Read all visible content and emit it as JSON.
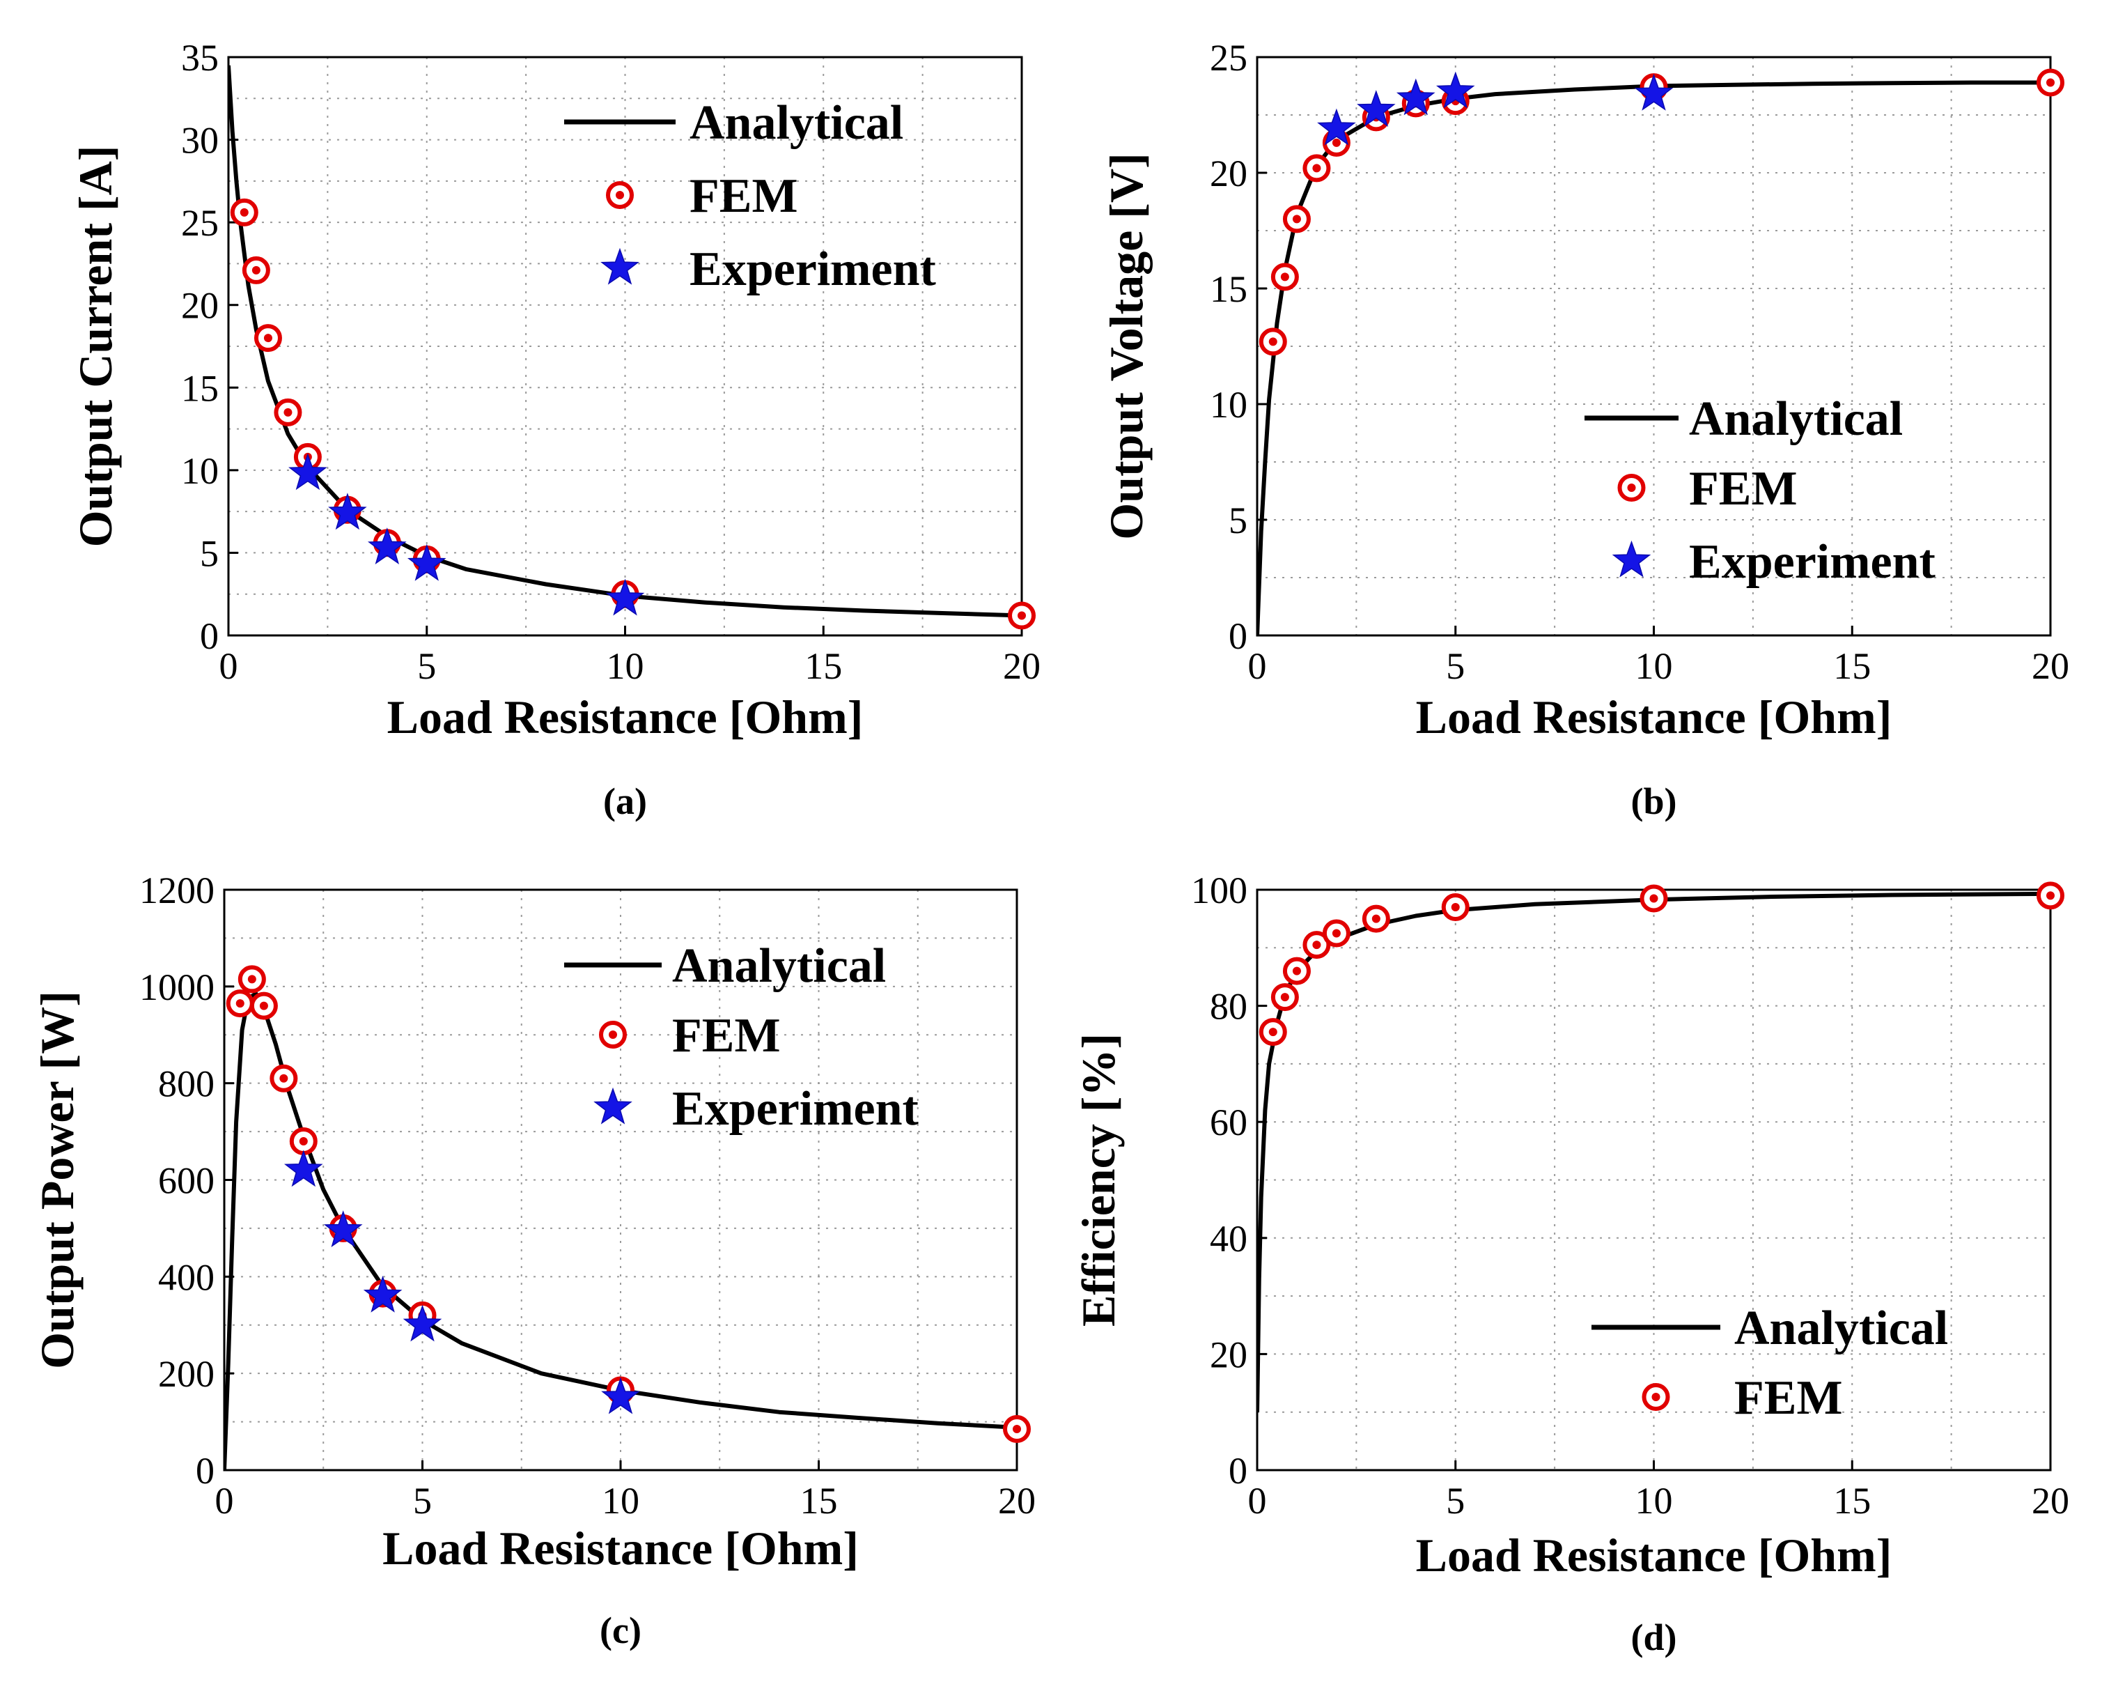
{
  "figure": {
    "colors": {
      "analytical": "#000000",
      "fem": "#e10000",
      "experiment": "#1414e6",
      "grid": "#9a9a9a"
    }
  },
  "chart_data": [
    {
      "id": "a",
      "type": "line",
      "caption": "(a)",
      "xlabel": "Load Resistance [Ohm]",
      "ylabel": "Output Current [A]",
      "xlim": [
        0,
        20
      ],
      "ylim": [
        0,
        35
      ],
      "xticks": [
        "0",
        "5",
        "10",
        "15",
        "20"
      ],
      "xtick_values": [
        0,
        5,
        10,
        15,
        20
      ],
      "yticks": [
        "0",
        "5",
        "10",
        "15",
        "20",
        "25",
        "30",
        "35"
      ],
      "ytick_values": [
        0,
        5,
        10,
        15,
        20,
        25,
        30,
        35
      ],
      "grid": true,
      "legend_position": "top-right",
      "legend": [
        "Analytical",
        "FEM",
        "Experiment"
      ],
      "analytical": {
        "name": "Analytical",
        "x": [
          0,
          0.1,
          0.2,
          0.3,
          0.5,
          0.7,
          1,
          1.5,
          2,
          3,
          4,
          5,
          6,
          8,
          10,
          12,
          14,
          16,
          18,
          20
        ],
        "y": [
          34.5,
          30.5,
          27.5,
          25,
          21.2,
          18.5,
          15.4,
          12.2,
          10.2,
          7.6,
          6.0,
          4.8,
          4.0,
          3.1,
          2.4,
          2.0,
          1.7,
          1.5,
          1.35,
          1.2
        ]
      },
      "fem": {
        "name": "FEM",
        "x": [
          0.4,
          0.7,
          1,
          1.5,
          2,
          3,
          4,
          5,
          10,
          20
        ],
        "y": [
          25.6,
          22.1,
          18,
          13.5,
          10.8,
          7.6,
          5.6,
          4.6,
          2.5,
          1.2
        ]
      },
      "experiment": {
        "name": "Experiment",
        "x": [
          2,
          3,
          4,
          5,
          10
        ],
        "y": [
          9.8,
          7.4,
          5.3,
          4.3,
          2.2
        ]
      }
    },
    {
      "id": "b",
      "type": "line",
      "caption": "(b)",
      "xlabel": "Load Resistance [Ohm]",
      "ylabel": "Output Voltage [V]",
      "xlim": [
        0,
        20
      ],
      "ylim": [
        0,
        25
      ],
      "xticks": [
        "0",
        "5",
        "10",
        "15",
        "20"
      ],
      "xtick_values": [
        0,
        5,
        10,
        15,
        20
      ],
      "yticks": [
        "0",
        "5",
        "10",
        "15",
        "20",
        "25"
      ],
      "ytick_values": [
        0,
        5,
        10,
        15,
        20,
        25
      ],
      "grid": true,
      "legend_position": "bottom-right",
      "legend": [
        "Analytical",
        "FEM",
        "Experiment"
      ],
      "analytical": {
        "name": "Analytical",
        "x": [
          0,
          0.1,
          0.2,
          0.3,
          0.5,
          0.7,
          1,
          1.5,
          2,
          3,
          4,
          5,
          6,
          8,
          10,
          12,
          14,
          16,
          18,
          20
        ],
        "y": [
          0,
          4.5,
          7.5,
          10.2,
          13.5,
          15.8,
          18.2,
          20.3,
          21.4,
          22.4,
          22.9,
          23.2,
          23.4,
          23.6,
          23.75,
          23.8,
          23.85,
          23.88,
          23.9,
          23.9
        ]
      },
      "fem": {
        "name": "FEM",
        "x": [
          0.4,
          0.7,
          1,
          1.5,
          2,
          3,
          4,
          5,
          10,
          20
        ],
        "y": [
          12.7,
          15.5,
          18,
          20.2,
          21.3,
          22.4,
          23,
          23.1,
          23.7,
          23.9
        ]
      },
      "experiment": {
        "name": "Experiment",
        "x": [
          2,
          3,
          4,
          5,
          10
        ],
        "y": [
          21.9,
          22.7,
          23.2,
          23.5,
          23.4
        ]
      }
    },
    {
      "id": "c",
      "type": "line",
      "caption": "(c)",
      "xlabel": "Load Resistance [Ohm]",
      "ylabel": "Output Power [W]",
      "xlim": [
        0,
        20
      ],
      "ylim": [
        0,
        1200
      ],
      "xticks": [
        "0",
        "5",
        "10",
        "15",
        "20"
      ],
      "xtick_values": [
        0,
        5,
        10,
        15,
        20
      ],
      "yticks": [
        "0",
        "200",
        "400",
        "600",
        "800",
        "1000",
        "1200"
      ],
      "ytick_values": [
        0,
        200,
        400,
        600,
        800,
        1000,
        1200
      ],
      "grid": true,
      "legend_position": "top-right",
      "legend": [
        "Analytical",
        "FEM",
        "Experiment"
      ],
      "analytical": {
        "name": "Analytical",
        "x": [
          0,
          0.1,
          0.2,
          0.3,
          0.45,
          0.6,
          0.8,
          1,
          1.3,
          1.6,
          2,
          2.5,
          3,
          4,
          5,
          6,
          8,
          10,
          12,
          14,
          16,
          18,
          20
        ],
        "y": [
          0,
          220,
          480,
          720,
          910,
          975,
          985,
          955,
          880,
          790,
          690,
          580,
          500,
          380,
          310,
          262,
          200,
          165,
          140,
          120,
          108,
          97,
          88
        ]
      },
      "fem": {
        "name": "FEM",
        "x": [
          0.4,
          0.7,
          1,
          1.5,
          2,
          3,
          4,
          5,
          10,
          20
        ],
        "y": [
          965,
          1015,
          960,
          810,
          680,
          500,
          365,
          320,
          165,
          85
        ]
      },
      "experiment": {
        "name": "Experiment",
        "x": [
          2,
          3,
          4,
          5,
          10
        ],
        "y": [
          620,
          495,
          360,
          300,
          150
        ]
      }
    },
    {
      "id": "d",
      "type": "line",
      "caption": "(d)",
      "xlabel": "Load Resistance [Ohm]",
      "ylabel": "Efficiency [%]",
      "xlim": [
        0,
        20
      ],
      "ylim": [
        0,
        100
      ],
      "xticks": [
        "0",
        "5",
        "10",
        "15",
        "20"
      ],
      "xtick_values": [
        0,
        5,
        10,
        15,
        20
      ],
      "yticks": [
        "0",
        "20",
        "40",
        "60",
        "80",
        "100"
      ],
      "ytick_values": [
        0,
        20,
        40,
        60,
        80,
        100
      ],
      "grid": true,
      "legend_position": "bottom-right",
      "legend": [
        "Analytical",
        "FEM"
      ],
      "analytical": {
        "name": "Analytical",
        "x": [
          0,
          0.05,
          0.1,
          0.2,
          0.3,
          0.5,
          0.7,
          1,
          1.5,
          2,
          3,
          4,
          5,
          7,
          10,
          13,
          16,
          20
        ],
        "y": [
          10,
          33,
          47,
          62,
          70,
          77,
          82,
          86,
          89.5,
          91.5,
          94,
          95.5,
          96.5,
          97.5,
          98.3,
          98.8,
          99.1,
          99.3
        ]
      },
      "fem": {
        "name": "FEM",
        "x": [
          0.4,
          0.7,
          1,
          1.5,
          2,
          3,
          5,
          10,
          20
        ],
        "y": [
          75.5,
          81.5,
          86,
          90.5,
          92.5,
          95,
          97,
          98.5,
          99
        ]
      }
    }
  ]
}
